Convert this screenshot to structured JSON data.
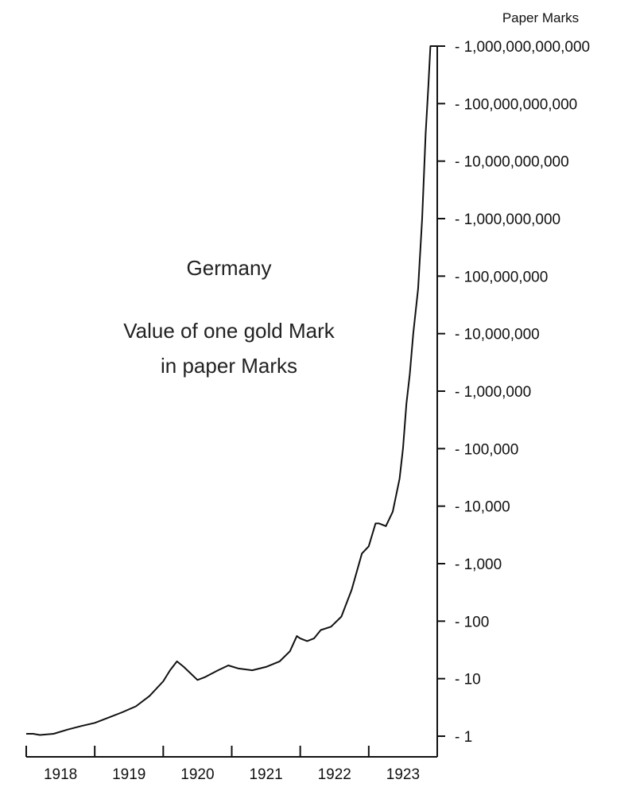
{
  "chart_data": {
    "type": "line",
    "unit_label": "Paper Marks",
    "annotation": {
      "country": "Germany",
      "description_line1": "Value of one gold Mark",
      "description_line2": "in paper Marks"
    },
    "y_scale": "log",
    "ylim": [
      1,
      1000000000000
    ],
    "y_ticks": [
      {
        "value": 1,
        "label": "1"
      },
      {
        "value": 10,
        "label": "10"
      },
      {
        "value": 100,
        "label": "100"
      },
      {
        "value": 1000,
        "label": "1,000"
      },
      {
        "value": 10000,
        "label": "10,000"
      },
      {
        "value": 100000,
        "label": "100,000"
      },
      {
        "value": 1000000,
        "label": "1,000,000"
      },
      {
        "value": 10000000,
        "label": "10,000,000"
      },
      {
        "value": 100000000,
        "label": "100,000,000"
      },
      {
        "value": 1000000000,
        "label": "1,000,000,000"
      },
      {
        "value": 10000000000,
        "label": "10,000,000,000"
      },
      {
        "value": 100000000000,
        "label": "100,000,000,000"
      },
      {
        "value": 1000000000000,
        "label": "1,000,000,000,000"
      }
    ],
    "xlim": [
      1918,
      1924
    ],
    "x_ticks": [
      {
        "value": 1918,
        "label": "1918"
      },
      {
        "value": 1919,
        "label": "1919"
      },
      {
        "value": 1920,
        "label": "1920"
      },
      {
        "value": 1921,
        "label": "1921"
      },
      {
        "value": 1922,
        "label": "1922"
      },
      {
        "value": 1923,
        "label": "1923"
      }
    ],
    "series": [
      {
        "points": [
          [
            1918.0,
            1.1
          ],
          [
            1918.1,
            1.1
          ],
          [
            1918.2,
            1.05
          ],
          [
            1918.4,
            1.1
          ],
          [
            1918.6,
            1.3
          ],
          [
            1918.8,
            1.5
          ],
          [
            1919.0,
            1.7
          ],
          [
            1919.2,
            2.1
          ],
          [
            1919.4,
            2.6
          ],
          [
            1919.6,
            3.3
          ],
          [
            1919.8,
            5.0
          ],
          [
            1920.0,
            9.0
          ],
          [
            1920.1,
            14.0
          ],
          [
            1920.2,
            20.0
          ],
          [
            1920.3,
            16.0
          ],
          [
            1920.5,
            9.5
          ],
          [
            1920.6,
            10.5
          ],
          [
            1920.8,
            14.0
          ],
          [
            1920.95,
            17.0
          ],
          [
            1921.1,
            15.0
          ],
          [
            1921.3,
            14.0
          ],
          [
            1921.5,
            16.0
          ],
          [
            1921.7,
            20.0
          ],
          [
            1921.85,
            30.0
          ],
          [
            1921.95,
            55.0
          ],
          [
            1922.0,
            50.0
          ],
          [
            1922.1,
            45.0
          ],
          [
            1922.2,
            50.0
          ],
          [
            1922.3,
            70.0
          ],
          [
            1922.45,
            80.0
          ],
          [
            1922.6,
            120.0
          ],
          [
            1922.75,
            350.0
          ],
          [
            1922.9,
            1500.0
          ],
          [
            1923.0,
            2000.0
          ],
          [
            1923.1,
            5000.0
          ],
          [
            1923.15,
            5000.0
          ],
          [
            1923.25,
            4500.0
          ],
          [
            1923.35,
            8000.0
          ],
          [
            1923.45,
            30000.0
          ],
          [
            1923.5,
            100000.0
          ],
          [
            1923.55,
            600000.0
          ],
          [
            1923.6,
            2000000.0
          ],
          [
            1923.65,
            10000000.0
          ],
          [
            1923.72,
            60000000.0
          ],
          [
            1923.78,
            1000000000.0
          ],
          [
            1923.83,
            30000000000.0
          ],
          [
            1923.87,
            200000000000.0
          ],
          [
            1923.9,
            1000000000000.0
          ]
        ]
      }
    ]
  }
}
